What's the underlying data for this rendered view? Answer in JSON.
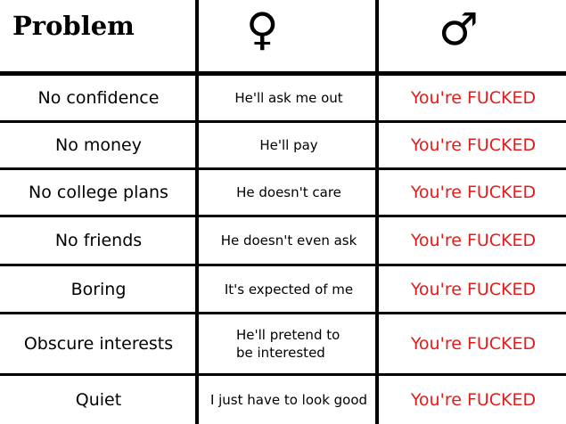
{
  "header": {
    "problem": "Problem",
    "female_symbol": "♀",
    "male_symbol": "♂"
  },
  "colors": {
    "accent_red": "#e31b1b"
  },
  "rows": [
    {
      "problem": "No confidence",
      "female": "He'll ask me out",
      "male": "You're FUCKED"
    },
    {
      "problem": "No money",
      "female": "He'll pay",
      "male": "You're FUCKED"
    },
    {
      "problem": "No college plans",
      "female": "He doesn't care",
      "male": "You're FUCKED"
    },
    {
      "problem": "No friends",
      "female": "He doesn't even ask",
      "male": "You're FUCKED"
    },
    {
      "problem": "Boring",
      "female": "It's expected of me",
      "male": "You're FUCKED"
    },
    {
      "problem": "Obscure interests",
      "female": "He'll pretend to be interested",
      "male": "You're FUCKED"
    },
    {
      "problem": "Quiet",
      "female": "I just have to look good",
      "male": "You're FUCKED"
    }
  ]
}
